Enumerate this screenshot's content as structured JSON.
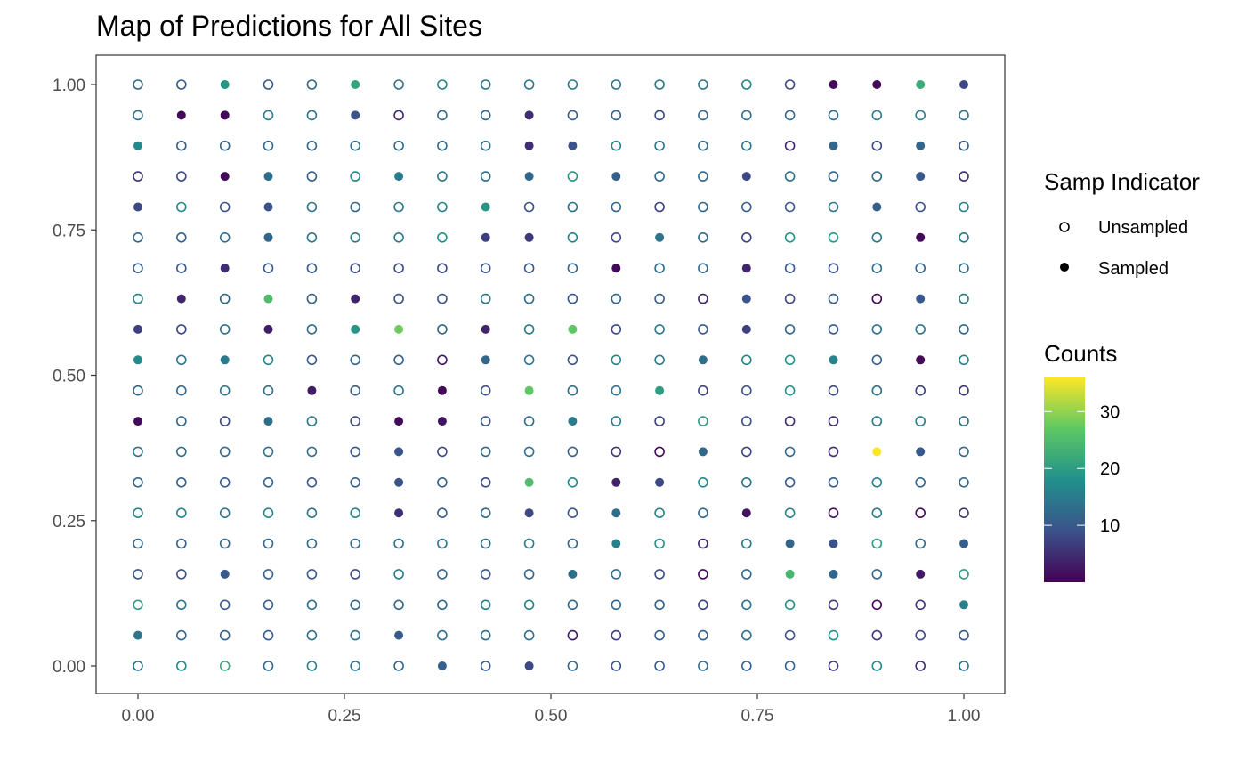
{
  "chart_data": {
    "type": "scatter",
    "title": "Map of Predictions for All Sites",
    "xlabel": "",
    "ylabel": "",
    "xlim": [
      0,
      1
    ],
    "ylim": [
      0,
      1
    ],
    "grid": false,
    "x_ticks": [
      "0.00",
      "0.25",
      "0.50",
      "0.75",
      "1.00"
    ],
    "y_ticks": [
      "0.00",
      "0.25",
      "0.50",
      "0.75",
      "1.00"
    ],
    "grid_n": 20,
    "grid_step": 0.0526,
    "legends": {
      "shape": {
        "title": "Samp Indicator",
        "entries": [
          "Unsampled",
          "Sampled"
        ],
        "position": "right"
      },
      "color": {
        "title": "Counts",
        "ticks": [
          "10",
          "20",
          "30"
        ],
        "range": [
          0,
          36
        ],
        "colors": [
          "#440154",
          "#3b528b",
          "#21908c",
          "#5dc863",
          "#fde725"
        ],
        "position": "right"
      }
    },
    "rows_note": "one entry per y-level (top row y=1.00 first); 20 values per row from x=0.00 to x=1.00; value = predicted count; sampled flag from 'sampled' strings (1 = sampled/filled)",
    "values": [
      [
        12,
        10,
        19,
        10,
        12,
        21,
        14,
        16,
        14,
        14,
        15,
        14,
        14,
        14,
        16,
        8,
        1,
        1,
        22,
        8
      ],
      [
        14,
        1,
        1,
        15,
        13,
        9,
        4,
        12,
        12,
        5,
        10,
        11,
        8,
        12,
        13,
        12,
        13,
        15,
        15,
        14
      ],
      [
        17,
        11,
        12,
        12,
        12,
        13,
        13,
        13,
        13,
        5,
        9,
        16,
        14,
        13,
        14,
        4,
        12,
        8,
        12,
        11
      ],
      [
        6,
        8,
        1,
        13,
        11,
        17,
        15,
        15,
        13,
        12,
        19,
        11,
        12,
        12,
        8,
        13,
        12,
        12,
        10,
        5
      ],
      [
        8,
        17,
        9,
        9,
        14,
        12,
        15,
        16,
        19,
        9,
        13,
        12,
        7,
        12,
        11,
        10,
        14,
        11,
        9,
        16
      ],
      [
        12,
        11,
        13,
        12,
        14,
        15,
        15,
        18,
        7,
        6,
        16,
        8,
        14,
        12,
        7,
        18,
        19,
        14,
        1,
        14
      ],
      [
        11,
        10,
        5,
        10,
        10,
        8,
        8,
        8,
        9,
        10,
        12,
        1,
        13,
        12,
        4,
        10,
        9,
        13,
        11,
        13
      ],
      [
        16,
        4,
        12,
        25,
        11,
        4,
        9,
        9,
        14,
        13,
        10,
        12,
        11,
        4,
        9,
        8,
        10,
        1,
        10,
        14
      ],
      [
        7,
        8,
        13,
        3,
        13,
        19,
        28,
        12,
        4,
        15,
        27,
        8,
        15,
        10,
        7,
        12,
        10,
        14,
        14,
        12
      ],
      [
        17,
        14,
        15,
        16,
        10,
        12,
        11,
        2,
        12,
        14,
        9,
        16,
        15,
        13,
        16,
        18,
        16,
        11,
        1,
        16
      ],
      [
        12,
        12,
        14,
        13,
        3,
        11,
        14,
        1,
        9,
        27,
        13,
        14,
        20,
        7,
        9,
        18,
        8,
        13,
        7,
        6
      ],
      [
        1,
        12,
        8,
        13,
        15,
        8,
        1,
        2,
        10,
        13,
        15,
        15,
        7,
        20,
        9,
        5,
        5,
        15,
        16,
        13
      ],
      [
        14,
        13,
        12,
        13,
        13,
        10,
        9,
        8,
        12,
        13,
        11,
        6,
        1,
        12,
        7,
        12,
        5,
        36,
        10,
        12
      ],
      [
        12,
        11,
        10,
        11,
        10,
        11,
        9,
        11,
        8,
        25,
        17,
        4,
        8,
        17,
        14,
        10,
        10,
        16,
        12,
        12
      ],
      [
        16,
        16,
        14,
        16,
        14,
        16,
        5,
        10,
        12,
        8,
        9,
        13,
        16,
        12,
        2,
        16,
        2,
        15,
        1,
        6
      ],
      [
        12,
        11,
        12,
        12,
        12,
        12,
        13,
        14,
        13,
        15,
        12,
        16,
        18,
        4,
        14,
        12,
        9,
        20,
        12,
        11
      ],
      [
        10,
        9,
        10,
        11,
        10,
        8,
        15,
        12,
        10,
        12,
        13,
        14,
        8,
        1,
        12,
        24,
        12,
        12,
        3,
        20
      ],
      [
        20,
        14,
        10,
        11,
        13,
        12,
        12,
        12,
        15,
        16,
        12,
        12,
        11,
        7,
        14,
        18,
        6,
        1,
        6,
        16
      ],
      [
        14,
        12,
        11,
        10,
        13,
        13,
        10,
        13,
        13,
        13,
        3,
        7,
        11,
        11,
        13,
        9,
        18,
        6,
        8,
        10
      ],
      [
        14,
        17,
        22,
        12,
        16,
        14,
        12,
        11,
        10,
        8,
        12,
        9,
        10,
        13,
        11,
        11,
        6,
        17,
        5,
        14
      ]
    ],
    "sampled": [
      "00100100000000001111",
      "01100100010000000000",
      "10000000011000001010",
      "00110010010100100010",
      "10010000100000000100",
      "00010000110010000010",
      "00100000000100100000",
      "01010100000000100010",
      "10010110101000100000",
      "10100000100001001010",
      "00001001010010000000",
      "10010011001000000000",
      "00000010000001000110",
      "00000010010110000000",
      "00000010010100100000",
      "00000000000100011001",
      "00100000001000011010",
      "00000000000000000001",
      "10000010000000000000",
      "00000001010000000000"
    ]
  }
}
